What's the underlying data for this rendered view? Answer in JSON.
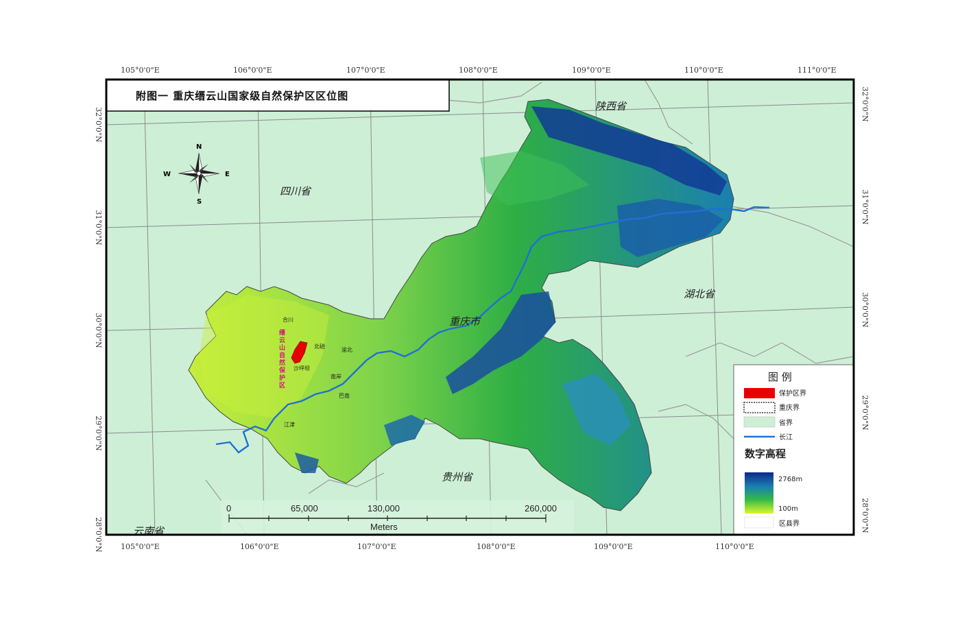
{
  "title": "附图一   重庆缙云山国家级自然保护区区位图",
  "graticule": {
    "top_lon": [
      "105°0'0\"E",
      "106°0'0\"E",
      "107°0'0\"E",
      "108°0'0\"E",
      "109°0'0\"E",
      "110°0'0\"E",
      "111°0'0\"E"
    ],
    "bottom_lon": [
      "105°0'0\"E",
      "106°0'0\"E",
      "107°0'0\"E",
      "108°0'0\"E",
      "109°0'0\"E",
      "110°0'0\"E"
    ],
    "left_lat": [
      "32°0'0\"N",
      "31°0'0\"N",
      "30°0'0\"N",
      "29°0'0\"N",
      "28°0'0\"N"
    ],
    "right_lat": [
      "32°0'0\"N",
      "31°0'0\"N",
      "30°0'0\"N",
      "29°0'0\"N",
      "28°0'0\"N"
    ]
  },
  "compass": {
    "n": "N",
    "s": "S",
    "e": "E",
    "w": "W"
  },
  "provinces": {
    "shaanxi": "陕西省",
    "sichuan": "四川省",
    "hubei": "湖北省",
    "guizhou": "贵州省",
    "yunnan": "云南省",
    "chongqing_city": "重庆市"
  },
  "local_places": [
    "合川",
    "北碚",
    "渝北",
    "沙坪坝",
    "南岸",
    "巴南",
    "江津"
  ],
  "reserve_label": "缙云山自然保护区",
  "scalebar": {
    "ticks": [
      "0",
      "65,000",
      "130,000",
      "260,000"
    ],
    "unit": "Meters"
  },
  "legend": {
    "title": "图  例",
    "items": [
      {
        "label": "保护区界",
        "color": "#e60000"
      },
      {
        "label": "重庆界",
        "color": "#ffffff"
      },
      {
        "label": "省界",
        "color": "#cdefd6"
      },
      {
        "label": "长江",
        "color": "#1f6fd6"
      }
    ],
    "dem_title": "数字高程",
    "dem_high": "2768m",
    "dem_low": "100m",
    "county": "区县界"
  },
  "colors": {
    "background_land": "#cdefd6",
    "river": "#1f6fd6",
    "reserve": "#e60000",
    "dem_low": "#d9f72b",
    "dem_mid": "#2fb84a",
    "dem_high": "#0b2a8a"
  }
}
